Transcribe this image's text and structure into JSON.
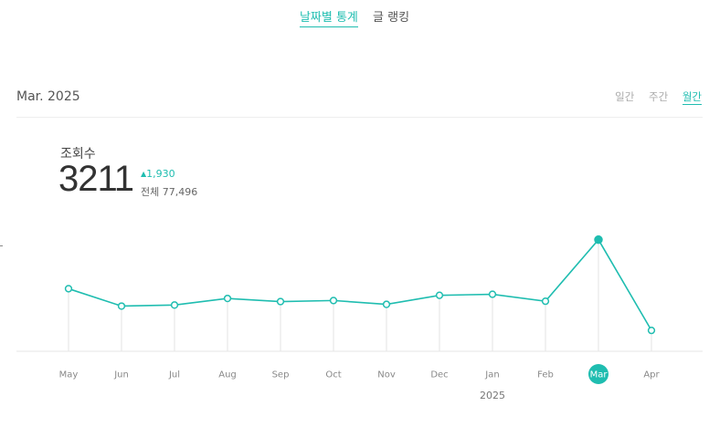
{
  "tabs": [
    {
      "label": "날짜별 통계",
      "active": true
    },
    {
      "label": "글 랭킹",
      "active": false
    }
  ],
  "period_label": "Mar. 2025",
  "period_options": [
    {
      "label": "일간",
      "active": false
    },
    {
      "label": "주간",
      "active": false
    },
    {
      "label": "월간",
      "active": true
    }
  ],
  "stats": {
    "title": "조회수",
    "value": "3211",
    "delta": "1,930",
    "total_label": "전체 77,496"
  },
  "colors": {
    "accent": "#1fbdb0",
    "muted": "#aaaaaa"
  },
  "chart_data": {
    "type": "line",
    "categories": [
      "May",
      "Jun",
      "Jul",
      "Aug",
      "Sep",
      "Oct",
      "Nov",
      "Dec",
      "Jan",
      "Feb",
      "Mar",
      "Apr"
    ],
    "values": [
      1800,
      1300,
      1330,
      1520,
      1430,
      1460,
      1350,
      1610,
      1640,
      1440,
      3211,
      600
    ],
    "selected": "Mar",
    "year_label": "2025",
    "ylim": [
      0,
      4200
    ],
    "grid": false
  }
}
